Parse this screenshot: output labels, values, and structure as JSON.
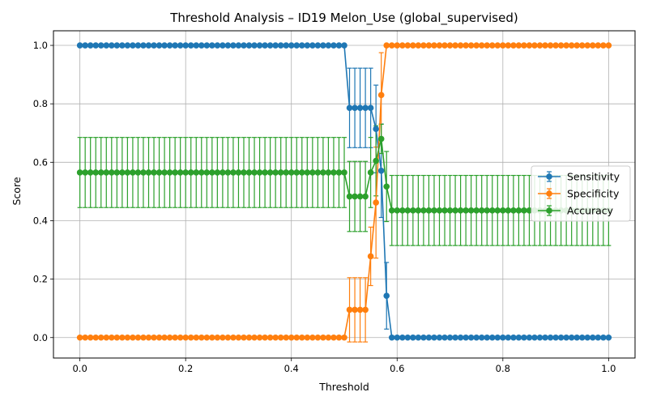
{
  "chart_data": {
    "type": "line",
    "title": "Threshold Analysis – ID19 Melon_Use (global_supervised)",
    "xlabel": "Threshold",
    "ylabel": "Score",
    "xlim": [
      -0.05,
      1.05
    ],
    "ylim": [
      -0.07,
      1.05
    ],
    "xticks": [
      "0.0",
      "0.2",
      "0.4",
      "0.6",
      "0.8",
      "1.0"
    ],
    "yticks": [
      "0.0",
      "0.2",
      "0.4",
      "0.6",
      "0.8",
      "1.0"
    ],
    "grid": true,
    "legend_position": "center-right",
    "x_range": {
      "start": 0,
      "end": 1,
      "step": 0.01
    },
    "series": [
      {
        "name": "Sensitivity",
        "color": "#1f77b4",
        "segments": [
          {
            "from": 0.0,
            "to": 0.5,
            "value": 1.0,
            "err": 0
          },
          {
            "from": 0.51,
            "to": 0.55,
            "value": 0.786,
            "err": 0.136
          },
          {
            "from": 0.56,
            "to": 0.56,
            "value": 0.714,
            "err": 0.15
          },
          {
            "from": 0.57,
            "to": 0.57,
            "value": 0.571,
            "err": 0.16
          },
          {
            "from": 0.58,
            "to": 0.58,
            "value": 0.143,
            "err": 0.114
          },
          {
            "from": 0.59,
            "to": 1.0,
            "value": 0.0,
            "err": 0
          }
        ]
      },
      {
        "name": "Specificity",
        "color": "#ff7f0e",
        "segments": [
          {
            "from": 0.0,
            "to": 0.5,
            "value": 0.0,
            "err": 0
          },
          {
            "from": 0.51,
            "to": 0.54,
            "value": 0.095,
            "err": 0.11
          },
          {
            "from": 0.55,
            "to": 0.55,
            "value": 0.278,
            "err": 0.1
          },
          {
            "from": 0.56,
            "to": 0.56,
            "value": 0.462,
            "err": 0.19
          },
          {
            "from": 0.57,
            "to": 0.57,
            "value": 0.83,
            "err": 0.145
          },
          {
            "from": 0.58,
            "to": 1.0,
            "value": 1.0,
            "err": 0
          }
        ]
      },
      {
        "name": "Accuracy",
        "color": "#2ca02c",
        "segments": [
          {
            "from": 0.0,
            "to": 0.5,
            "value": 0.565,
            "err": 0.12
          },
          {
            "from": 0.51,
            "to": 0.54,
            "value": 0.483,
            "err": 0.12
          },
          {
            "from": 0.55,
            "to": 0.55,
            "value": 0.565,
            "err": 0.12
          },
          {
            "from": 0.56,
            "to": 0.56,
            "value": 0.605,
            "err": 0.12
          },
          {
            "from": 0.57,
            "to": 0.57,
            "value": 0.68,
            "err": 0.05
          },
          {
            "from": 0.58,
            "to": 0.58,
            "value": 0.517,
            "err": 0.12
          },
          {
            "from": 0.59,
            "to": 1.0,
            "value": 0.435,
            "err": 0.12
          }
        ]
      }
    ]
  }
}
